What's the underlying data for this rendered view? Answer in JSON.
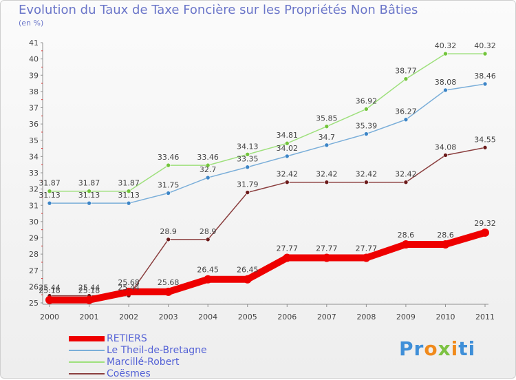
{
  "title": "Evolution du Taux de Taxe Foncière sur les Propriétés Non Bâties",
  "subtitle": "(en %)",
  "logo": {
    "text": "Proxiti",
    "letters": [
      {
        "char": "P",
        "color": "#3f8fd8"
      },
      {
        "char": "r",
        "color": "#3f8fd8"
      },
      {
        "char": "o",
        "color": "#f08a1c"
      },
      {
        "char": "x",
        "color": "#7cc242"
      },
      {
        "char": "i",
        "color": "#f08a1c"
      },
      {
        "char": "t",
        "color": "#3f8fd8"
      },
      {
        "char": "i",
        "color": "#3f8fd8"
      }
    ]
  },
  "chart_data": {
    "type": "line",
    "x": [
      "2000",
      "2001",
      "2002",
      "2003",
      "2004",
      "2005",
      "2006",
      "2007",
      "2008",
      "2009",
      "2010",
      "2011"
    ],
    "ylim": [
      25,
      41
    ],
    "yticks": [
      25,
      26,
      27,
      28,
      29,
      30,
      31,
      32,
      33,
      34,
      35,
      36,
      37,
      38,
      39,
      40,
      41
    ],
    "grid": false,
    "legend_position": "bottom-left",
    "series": [
      {
        "name": "RETIERS",
        "color": "#ee0000",
        "marker_color": "#ee0000",
        "bold": true,
        "values": [
          25.18,
          25.18,
          25.68,
          25.68,
          26.45,
          26.45,
          27.77,
          27.77,
          27.77,
          28.6,
          28.6,
          29.32
        ],
        "labels": [
          "25.18",
          "25.18",
          "25.68",
          "25.68",
          "26.45",
          "26.45",
          "27.77",
          "27.77",
          "27.77",
          "28.6",
          "28.6",
          "29.32"
        ]
      },
      {
        "name": "Le Theil-de-Bretagne",
        "color": "#7aaed9",
        "marker_color": "#3d85c6",
        "bold": false,
        "values": [
          31.13,
          31.13,
          31.13,
          31.75,
          32.7,
          33.35,
          34.02,
          34.7,
          35.39,
          36.27,
          38.08,
          38.46
        ],
        "labels": [
          "31.13",
          "31.13",
          "31.13",
          "31.75",
          "32.7",
          "33.35",
          "34.02",
          "34.7",
          "35.39",
          "36.27",
          "38.08",
          "38.46"
        ]
      },
      {
        "name": "Marcillé-Robert",
        "color": "#9ee07c",
        "marker_color": "#73c43c",
        "bold": false,
        "values": [
          31.87,
          31.87,
          31.87,
          33.46,
          33.46,
          34.13,
          34.81,
          35.85,
          36.92,
          38.77,
          40.32,
          40.32
        ],
        "labels": [
          "31.87",
          "31.87",
          "31.87",
          "33.46",
          "33.46",
          "34.13",
          "34.81",
          "35.85",
          "36.92",
          "38.77",
          "40.32",
          "40.32"
        ]
      },
      {
        "name": "Coësmes",
        "color": "#8b3f3f",
        "marker_color": "#6b1a1a",
        "bold": false,
        "values": [
          25.44,
          25.44,
          25.44,
          28.9,
          28.9,
          31.79,
          32.42,
          32.42,
          32.42,
          32.42,
          34.08,
          34.55
        ],
        "labels": [
          "25.44",
          "25.44",
          "25.44",
          "28.9",
          "28.9",
          "31.79",
          "32.42",
          "32.42",
          "32.42",
          "32.42",
          "34.08",
          "34.55"
        ]
      }
    ]
  }
}
